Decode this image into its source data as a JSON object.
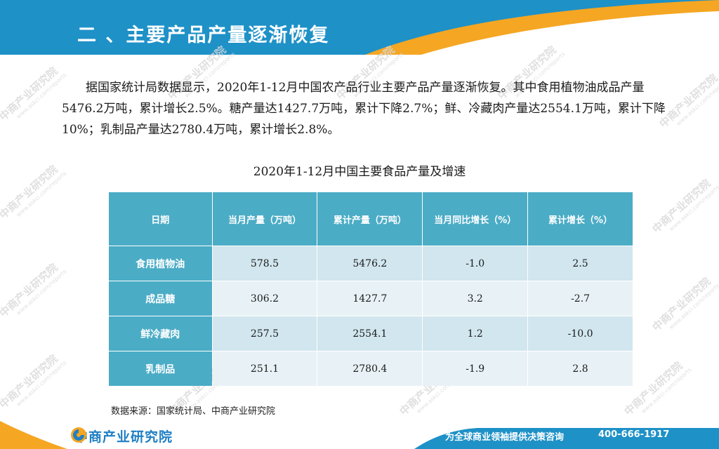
{
  "header": {
    "title": "二 、主要产品产量逐渐恢复",
    "colors": {
      "blue": "#1e91c7",
      "orange": "#f5a623"
    }
  },
  "paragraph": "据国家统计局数据显示，2020年1-12月中国农产品行业主要产品产量逐渐恢复。其中食用植物油成品产量5476.2万吨，累计增长2.5%。糖产量达1427.7万吨，累计下降2.7%；鲜、冷藏肉产量达2554.1万吨，累计下降10%；乳制品产量达2780.4万吨，累计增长2.8%。",
  "table": {
    "title": "2020年1-12月中国主要食品产量及增速",
    "headers": [
      "日期",
      "当月产量（万吨）",
      "累计产量（万吨）",
      "当月同比增长（%）",
      "累计增长（%）"
    ],
    "rows": [
      {
        "name": "食用植物油",
        "monthly": "578.5",
        "cumulative": "5476.2",
        "yoy": "-1.0",
        "cum_growth": "2.5"
      },
      {
        "name": "成品糖",
        "monthly": "306.2",
        "cumulative": "1427.7",
        "yoy": "3.2",
        "cum_growth": "-2.7"
      },
      {
        "name": "鲜冷藏肉",
        "monthly": "257.5",
        "cumulative": "2554.1",
        "yoy": "1.2",
        "cum_growth": "-10.0"
      },
      {
        "name": "乳制品",
        "monthly": "251.1",
        "cumulative": "2780.4",
        "yoy": "-1.9",
        "cum_growth": "2.8"
      }
    ],
    "colors": {
      "header": "#4bacc6",
      "row_odd": "#d1e6ee",
      "row_even": "#e8f2f6"
    }
  },
  "source": "数据来源：国家统计局、中商产业研究院",
  "watermark": {
    "text": "中商产业研究院",
    "sub": "www.askci.com/reports"
  },
  "footer": {
    "logo_text": "中商产业研究院",
    "logo_icon": "askci-logo-icon",
    "slogan": "为全球商业领袖提供决策咨询",
    "phone": "400-666-1917"
  }
}
